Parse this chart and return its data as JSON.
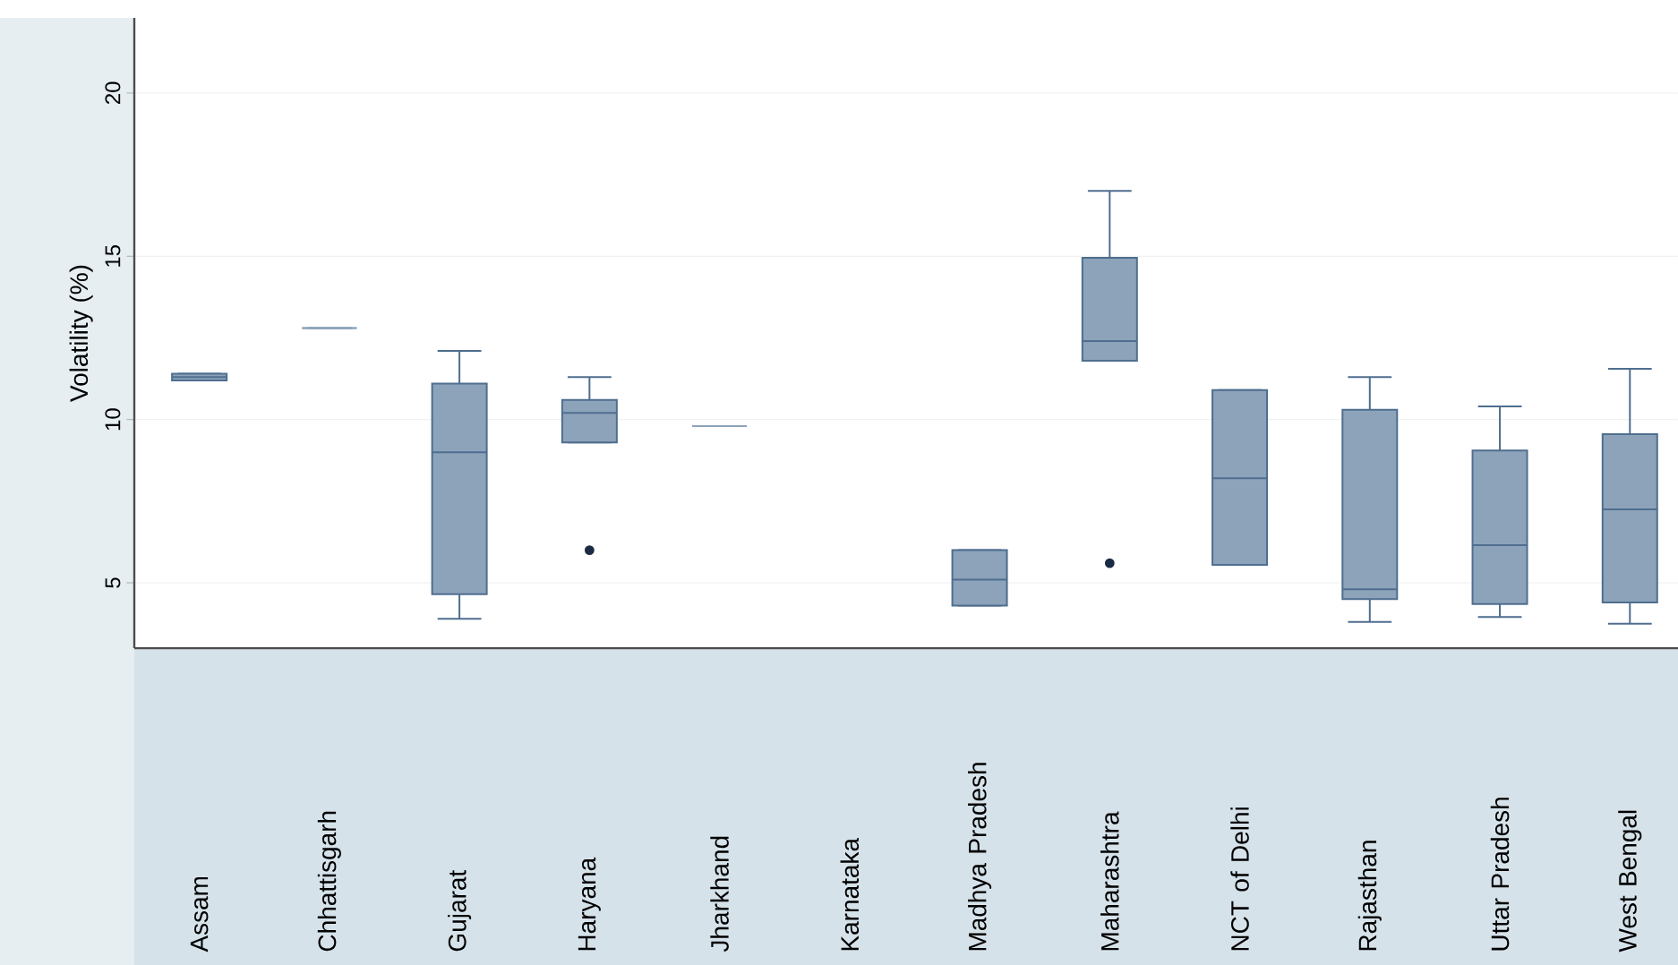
{
  "chart_data": {
    "type": "box",
    "ylabel": "Volatility (%)",
    "categories": [
      "Assam",
      "Chhattisgarh",
      "Gujarat",
      "Haryana",
      "Jharkhand",
      "Karnataka",
      "Madhya Pradesh",
      "Maharashtra",
      "NCT of Delhi",
      "Rajasthan",
      "Uttar Pradesh",
      "West Bengal"
    ],
    "ylim": [
      3,
      22.3
    ],
    "yticks": [
      5,
      10,
      15,
      20
    ],
    "grid": "y",
    "color": "#8ca3ba",
    "boxes": [
      {
        "low": 11.2,
        "q1": 11.2,
        "median": 11.3,
        "q3": 11.4,
        "high": 11.4
      },
      {
        "low": 12.8,
        "q1": 12.8,
        "median": 12.8,
        "q3": 12.8,
        "high": 12.8
      },
      {
        "low": 3.9,
        "q1": 4.65,
        "median": 9.0,
        "q3": 11.1,
        "high": 12.1
      },
      {
        "low": 9.3,
        "q1": 9.3,
        "median": 10.2,
        "q3": 10.6,
        "high": 11.3,
        "outliers": [
          6.0
        ]
      },
      {
        "low": 9.8,
        "q1": 9.8,
        "median": 9.8,
        "q3": 9.8,
        "high": 9.8
      },
      null,
      {
        "low": 4.3,
        "q1": 4.3,
        "median": 5.1,
        "q3": 6.0,
        "high": 6.0
      },
      {
        "low": 11.8,
        "q1": 11.8,
        "median": 12.4,
        "q3": 14.95,
        "high": 17.0,
        "outliers": [
          5.6
        ]
      },
      {
        "low": 5.55,
        "q1": 5.55,
        "median": 8.2,
        "q3": 10.9,
        "high": 10.9
      },
      {
        "low": 3.8,
        "q1": 4.5,
        "median": 4.8,
        "q3": 10.3,
        "high": 11.3
      },
      {
        "low": 3.95,
        "q1": 4.35,
        "median": 6.15,
        "q3": 9.05,
        "high": 10.4
      },
      {
        "low": 3.75,
        "q1": 4.4,
        "median": 7.25,
        "q3": 9.55,
        "high": 11.55
      }
    ]
  }
}
